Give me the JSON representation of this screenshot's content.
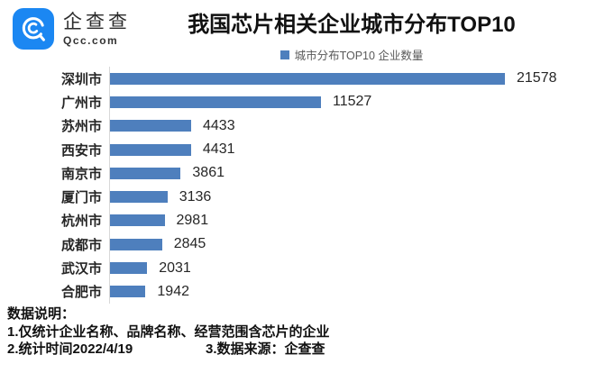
{
  "brand": {
    "name": "企查查",
    "domain": "Qcc.com",
    "logo_color": "#1b87f2"
  },
  "header": {
    "title": "我国芯片相关企业城市分布TOP10"
  },
  "legend": {
    "label": "城市分布TOP10 企业数量",
    "color": "#4e7fbd"
  },
  "chart_data": {
    "type": "bar",
    "orientation": "horizontal",
    "title": "我国芯片相关企业城市分布TOP10",
    "series_name": "城市分布TOP10 企业数量",
    "categories": [
      "深圳市",
      "广州市",
      "苏州市",
      "西安市",
      "南京市",
      "厦门市",
      "杭州市",
      "成都市",
      "武汉市",
      "合肥市"
    ],
    "values": [
      21578,
      11527,
      4433,
      4431,
      3861,
      3136,
      2981,
      2845,
      2031,
      1942
    ],
    "bar_color": "#4e7fbd",
    "value_labels_shown": true,
    "xlim": [
      0,
      22500
    ],
    "grid": false,
    "legend_position": "top-center"
  },
  "footer": {
    "heading": "数据说明：",
    "note1": "1.仅统计企业名称、品牌名称、经营范围含芯片的企业",
    "note2": "2.统计时间2022/4/19",
    "note3": "3.数据来源：企查查"
  }
}
